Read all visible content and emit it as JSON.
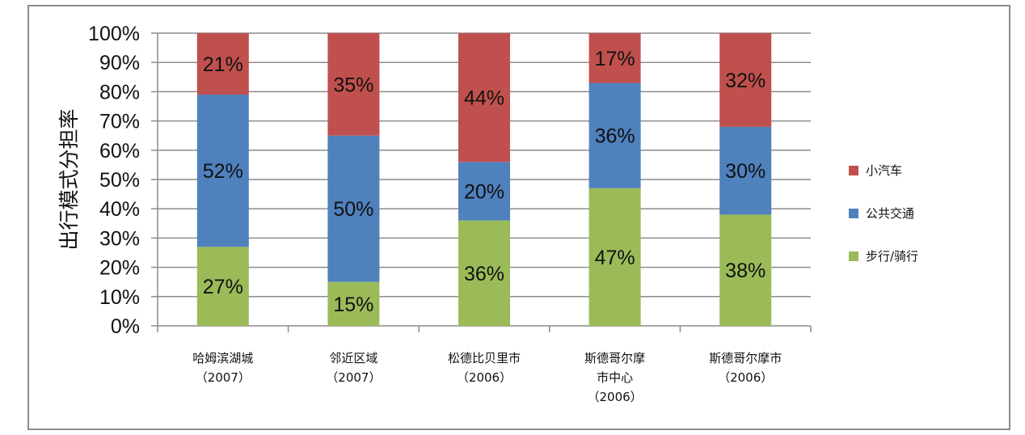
{
  "chart_data": {
    "type": "bar",
    "stacked": true,
    "percent": true,
    "ylabel": "出行模式分担率",
    "ylim": [
      0,
      100
    ],
    "yticks": [
      "0%",
      "10%",
      "20%",
      "30%",
      "40%",
      "50%",
      "60%",
      "70%",
      "80%",
      "90%",
      "100%"
    ],
    "grid": true,
    "legend_position": "right",
    "categories": [
      [
        "哈姆滨湖城",
        "（2007）"
      ],
      [
        "邻近区域",
        "（2007）"
      ],
      [
        "松德比贝里市",
        "（2006）"
      ],
      [
        "斯德哥尔摩",
        "市中心",
        "（2006）"
      ],
      [
        "斯德哥尔摩市",
        "（2006）"
      ]
    ],
    "series": [
      {
        "name": "步行/骑行",
        "color": "#9bbb59",
        "values": [
          27,
          15,
          36,
          47,
          38
        ],
        "labels": [
          "27%",
          "15%",
          "36%",
          "47%",
          "38%"
        ]
      },
      {
        "name": "公共交通",
        "color": "#4f81bd",
        "values": [
          52,
          50,
          20,
          36,
          30
        ],
        "labels": [
          "52%",
          "50%",
          "20%",
          "36%",
          "30%"
        ]
      },
      {
        "name": "小汽车",
        "color": "#c0504d",
        "values": [
          21,
          35,
          44,
          17,
          32
        ],
        "labels": [
          "21%",
          "35%",
          "44%",
          "17%",
          "32%"
        ]
      }
    ],
    "legend_order": [
      "小汽车",
      "公共交通",
      "步行/骑行"
    ]
  }
}
